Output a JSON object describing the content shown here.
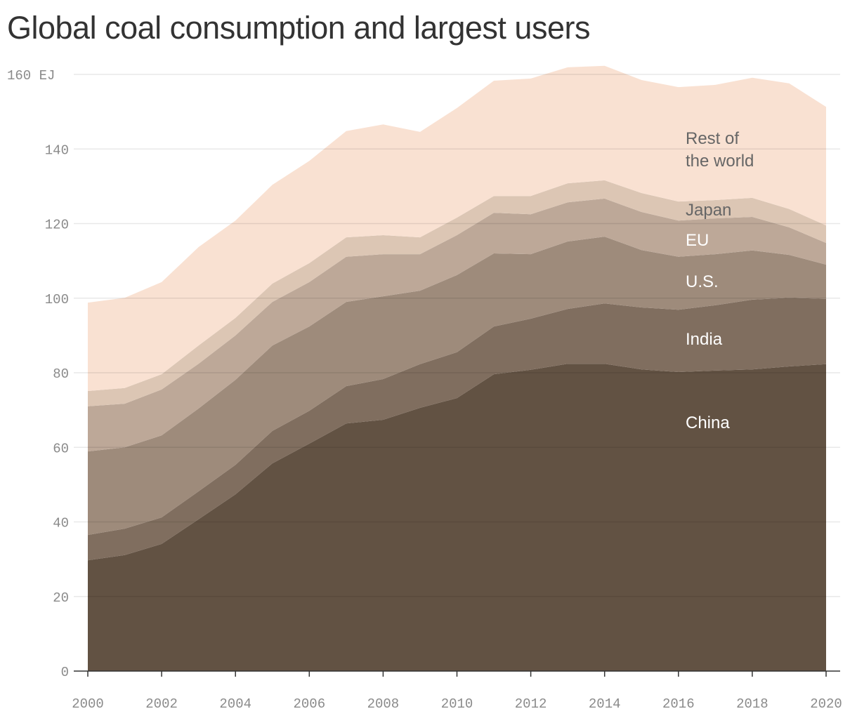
{
  "chart_data": {
    "type": "area",
    "stacked": true,
    "title": "Global coal consumption and largest users",
    "unit": "EJ",
    "x": [
      2000,
      2001,
      2002,
      2003,
      2004,
      2005,
      2006,
      2007,
      2008,
      2009,
      2010,
      2011,
      2012,
      2013,
      2014,
      2015,
      2016,
      2017,
      2018,
      2019,
      2020
    ],
    "xticks": [
      "2000",
      "2002",
      "2004",
      "2006",
      "2008",
      "2010",
      "2012",
      "2014",
      "2016",
      "2018",
      "2020"
    ],
    "yticks": [
      "0",
      "20",
      "40",
      "60",
      "80",
      "100",
      "120",
      "140",
      "160 EJ"
    ],
    "ylim": [
      0,
      160
    ],
    "grid": true,
    "series": [
      {
        "name": "China",
        "color": "#625243",
        "label_color": "#ffffff",
        "values": [
          29.7,
          31.1,
          34.1,
          40.7,
          47.4,
          55.7,
          61.0,
          66.4,
          67.4,
          70.6,
          73.2,
          79.6,
          80.8,
          82.4,
          82.4,
          80.9,
          80.2,
          80.6,
          80.9,
          81.7,
          82.3
        ]
      },
      {
        "name": "India",
        "color": "#806e5f",
        "label_color": "#ffffff",
        "values": [
          6.8,
          7.1,
          7.1,
          7.5,
          7.9,
          8.7,
          8.8,
          10.0,
          10.9,
          11.7,
          12.3,
          12.8,
          13.7,
          14.7,
          16.2,
          16.6,
          16.7,
          17.5,
          18.7,
          18.4,
          17.5
        ]
      },
      {
        "name": "U.S.",
        "color": "#9e8b7b",
        "label_color": "#ffffff",
        "values": [
          22.4,
          21.8,
          22.0,
          22.2,
          22.8,
          22.9,
          22.6,
          22.6,
          22.2,
          19.7,
          20.7,
          19.6,
          17.3,
          18.1,
          17.9,
          15.4,
          14.2,
          13.7,
          13.2,
          11.5,
          9.2
        ]
      },
      {
        "name": "EU",
        "color": "#bda898",
        "label_color": "#ffffff",
        "values": [
          12.1,
          11.7,
          12.3,
          12.0,
          11.9,
          11.7,
          11.9,
          12.1,
          11.3,
          9.8,
          10.7,
          10.9,
          10.7,
          10.5,
          10.2,
          10.2,
          9.7,
          9.6,
          9.0,
          7.4,
          5.8
        ]
      },
      {
        "name": "Japan",
        "color": "#dcc6b4",
        "label_color": "#666666",
        "values": [
          4.1,
          4.2,
          4.1,
          4.9,
          4.7,
          4.9,
          5.1,
          5.2,
          5.1,
          4.5,
          4.7,
          4.5,
          4.9,
          5.1,
          4.9,
          5.1,
          5.1,
          4.9,
          5.1,
          4.9,
          4.7
        ]
      },
      {
        "name": "Rest of the world",
        "label_lines": [
          "Rest of",
          "the world"
        ],
        "color": "#f9e1d2",
        "label_color": "#666666",
        "values": [
          23.7,
          24.2,
          24.7,
          26.4,
          26.1,
          26.5,
          27.4,
          28.5,
          29.7,
          28.3,
          29.4,
          30.9,
          31.5,
          31.1,
          30.7,
          30.3,
          30.7,
          30.9,
          32.2,
          33.7,
          31.8
        ]
      }
    ]
  }
}
